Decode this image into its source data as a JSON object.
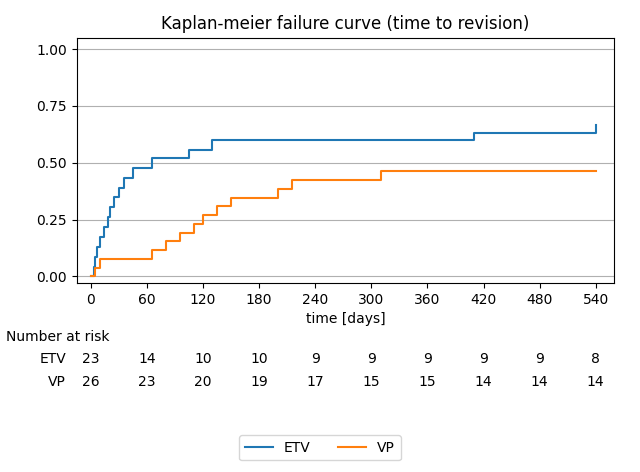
{
  "chart_data": {
    "type": "step",
    "title": "Kaplan-meier failure curve (time to revision)",
    "x_label": "time [days]",
    "xlim": [
      -15,
      560
    ],
    "ylim": [
      -0.03,
      1.05
    ],
    "xticks": [
      0,
      60,
      120,
      180,
      240,
      300,
      360,
      420,
      480,
      540
    ],
    "yticks": [
      {
        "value": 0.0,
        "label": "0.00"
      },
      {
        "value": 0.25,
        "label": "0.25"
      },
      {
        "value": 0.5,
        "label": "0.50"
      },
      {
        "value": 0.75,
        "label": "0.75"
      },
      {
        "value": 1.0,
        "label": "1.00"
      }
    ],
    "grid": true,
    "legend": "lower center",
    "series": [
      {
        "name": "ETV",
        "x": [
          0,
          3,
          5,
          7,
          10,
          14,
          18,
          21,
          25,
          30,
          35,
          40,
          45,
          55,
          65,
          75,
          90,
          105,
          115,
          120,
          130,
          215,
          225,
          235,
          410,
          510,
          540
        ],
        "values": [
          0.0,
          0.043,
          0.087,
          0.13,
          0.174,
          0.217,
          0.261,
          0.304,
          0.348,
          0.391,
          0.435,
          0.435,
          0.478,
          0.478,
          0.522,
          0.522,
          0.522,
          0.556,
          0.556,
          0.556,
          0.6,
          0.6,
          0.6,
          0.6,
          0.633,
          0.633,
          0.667
        ]
      },
      {
        "name": "VP",
        "x": [
          0,
          5,
          10,
          60,
          65,
          80,
          95,
          110,
          120,
          135,
          150,
          165,
          200,
          215,
          230,
          270,
          290,
          310,
          390,
          420,
          450,
          540
        ],
        "values": [
          0.0,
          0.038,
          0.077,
          0.077,
          0.115,
          0.154,
          0.192,
          0.231,
          0.269,
          0.308,
          0.346,
          0.346,
          0.385,
          0.423,
          0.423,
          0.423,
          0.423,
          0.462,
          0.462,
          0.462,
          0.462,
          0.462
        ]
      }
    ],
    "risk_table": {
      "label": "Number at risk",
      "times": [
        0,
        60,
        120,
        180,
        240,
        300,
        360,
        420,
        480,
        540
      ],
      "rows": [
        {
          "name": "ETV",
          "values": [
            23,
            14,
            10,
            10,
            9,
            9,
            9,
            9,
            9,
            8
          ]
        },
        {
          "name": "VP",
          "values": [
            26,
            23,
            20,
            19,
            17,
            15,
            15,
            14,
            14,
            14
          ]
        }
      ]
    }
  }
}
